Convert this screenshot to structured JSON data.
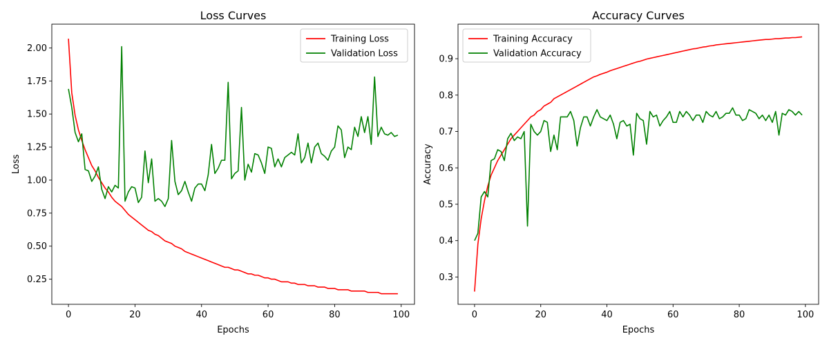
{
  "chart_data": [
    {
      "type": "line",
      "title": "Loss Curves",
      "xlabel": "Epochs",
      "ylabel": "Loss",
      "xlim": [
        -5,
        104
      ],
      "ylim": [
        0.06,
        2.18
      ],
      "xticks": [
        0,
        20,
        40,
        60,
        80,
        100
      ],
      "yticks": [
        0.25,
        0.5,
        0.75,
        1.0,
        1.25,
        1.5,
        1.75,
        2.0
      ],
      "xtick_labels": [
        "0",
        "20",
        "40",
        "60",
        "80",
        "100"
      ],
      "ytick_labels": [
        "0.25",
        "0.50",
        "0.75",
        "1.00",
        "1.25",
        "1.50",
        "1.75",
        "2.00"
      ],
      "grid": false,
      "legend_position": "upper-right",
      "x": [
        0,
        1,
        2,
        3,
        4,
        5,
        6,
        7,
        8,
        9,
        10,
        11,
        12,
        13,
        14,
        15,
        16,
        17,
        18,
        19,
        20,
        21,
        22,
        23,
        24,
        25,
        26,
        27,
        28,
        29,
        30,
        31,
        32,
        33,
        34,
        35,
        36,
        37,
        38,
        39,
        40,
        41,
        42,
        43,
        44,
        45,
        46,
        47,
        48,
        49,
        50,
        51,
        52,
        53,
        54,
        55,
        56,
        57,
        58,
        59,
        60,
        61,
        62,
        63,
        64,
        65,
        66,
        67,
        68,
        69,
        70,
        71,
        72,
        73,
        74,
        75,
        76,
        77,
        78,
        79,
        80,
        81,
        82,
        83,
        84,
        85,
        86,
        87,
        88,
        89,
        90,
        91,
        92,
        93,
        94,
        95,
        96,
        97,
        98,
        99
      ],
      "series": [
        {
          "name": "Training Loss",
          "color": "#ff0000",
          "values": [
            2.07,
            1.66,
            1.49,
            1.38,
            1.3,
            1.23,
            1.17,
            1.11,
            1.07,
            1.02,
            0.98,
            0.94,
            0.91,
            0.87,
            0.84,
            0.82,
            0.8,
            0.77,
            0.74,
            0.72,
            0.7,
            0.68,
            0.66,
            0.64,
            0.62,
            0.61,
            0.59,
            0.58,
            0.56,
            0.54,
            0.53,
            0.52,
            0.5,
            0.49,
            0.48,
            0.46,
            0.45,
            0.44,
            0.43,
            0.42,
            0.41,
            0.4,
            0.39,
            0.38,
            0.37,
            0.36,
            0.35,
            0.34,
            0.34,
            0.33,
            0.32,
            0.32,
            0.31,
            0.3,
            0.29,
            0.29,
            0.28,
            0.28,
            0.27,
            0.26,
            0.26,
            0.25,
            0.25,
            0.24,
            0.23,
            0.23,
            0.23,
            0.22,
            0.22,
            0.21,
            0.21,
            0.21,
            0.2,
            0.2,
            0.2,
            0.19,
            0.19,
            0.19,
            0.18,
            0.18,
            0.18,
            0.17,
            0.17,
            0.17,
            0.17,
            0.16,
            0.16,
            0.16,
            0.16,
            0.16,
            0.15,
            0.15,
            0.15,
            0.15,
            0.14,
            0.14,
            0.14,
            0.14,
            0.14,
            0.14
          ]
        },
        {
          "name": "Validation Loss",
          "color": "#008000",
          "values": [
            1.69,
            1.55,
            1.36,
            1.29,
            1.35,
            1.08,
            1.07,
            0.99,
            1.03,
            1.1,
            0.93,
            0.86,
            0.95,
            0.91,
            0.96,
            0.94,
            2.01,
            0.84,
            0.91,
            0.95,
            0.94,
            0.83,
            0.87,
            1.22,
            0.98,
            1.16,
            0.84,
            0.86,
            0.84,
            0.8,
            0.86,
            1.3,
            0.99,
            0.89,
            0.92,
            0.99,
            0.91,
            0.84,
            0.94,
            0.97,
            0.97,
            0.92,
            1.04,
            1.27,
            1.05,
            1.09,
            1.15,
            1.15,
            1.74,
            1.01,
            1.05,
            1.07,
            1.55,
            1.0,
            1.12,
            1.06,
            1.2,
            1.19,
            1.13,
            1.05,
            1.25,
            1.24,
            1.1,
            1.16,
            1.1,
            1.17,
            1.19,
            1.21,
            1.19,
            1.35,
            1.13,
            1.17,
            1.28,
            1.13,
            1.25,
            1.28,
            1.2,
            1.18,
            1.15,
            1.22,
            1.25,
            1.41,
            1.38,
            1.17,
            1.25,
            1.23,
            1.4,
            1.33,
            1.48,
            1.36,
            1.48,
            1.27,
            1.78,
            1.33,
            1.4,
            1.35,
            1.34,
            1.36,
            1.33,
            1.34
          ]
        }
      ]
    },
    {
      "type": "line",
      "title": "Accuracy Curves",
      "xlabel": "Epochs",
      "ylabel": "Accuracy",
      "xlim": [
        -5,
        104
      ],
      "ylim": [
        0.225,
        0.995
      ],
      "xticks": [
        0,
        20,
        40,
        60,
        80,
        100
      ],
      "yticks": [
        0.3,
        0.4,
        0.5,
        0.6,
        0.7,
        0.8,
        0.9
      ],
      "xtick_labels": [
        "0",
        "20",
        "40",
        "60",
        "80",
        "100"
      ],
      "ytick_labels": [
        "0.3",
        "0.4",
        "0.5",
        "0.6",
        "0.7",
        "0.8",
        "0.9"
      ],
      "grid": false,
      "legend_position": "upper-left",
      "x": [
        0,
        1,
        2,
        3,
        4,
        5,
        6,
        7,
        8,
        9,
        10,
        11,
        12,
        13,
        14,
        15,
        16,
        17,
        18,
        19,
        20,
        21,
        22,
        23,
        24,
        25,
        26,
        27,
        28,
        29,
        30,
        31,
        32,
        33,
        34,
        35,
        36,
        37,
        38,
        39,
        40,
        41,
        42,
        43,
        44,
        45,
        46,
        47,
        48,
        49,
        50,
        51,
        52,
        53,
        54,
        55,
        56,
        57,
        58,
        59,
        60,
        61,
        62,
        63,
        64,
        65,
        66,
        67,
        68,
        69,
        70,
        71,
        72,
        73,
        74,
        75,
        76,
        77,
        78,
        79,
        80,
        81,
        82,
        83,
        84,
        85,
        86,
        87,
        88,
        89,
        90,
        91,
        92,
        93,
        94,
        95,
        96,
        97,
        98,
        99
      ],
      "series": [
        {
          "name": "Training Accuracy",
          "color": "#ff0000",
          "values": [
            0.26,
            0.39,
            0.46,
            0.51,
            0.55,
            0.58,
            0.6,
            0.62,
            0.635,
            0.65,
            0.665,
            0.68,
            0.69,
            0.7,
            0.71,
            0.72,
            0.73,
            0.74,
            0.745,
            0.755,
            0.76,
            0.77,
            0.775,
            0.78,
            0.79,
            0.795,
            0.8,
            0.805,
            0.81,
            0.815,
            0.82,
            0.825,
            0.83,
            0.835,
            0.84,
            0.845,
            0.85,
            0.853,
            0.857,
            0.86,
            0.863,
            0.867,
            0.87,
            0.873,
            0.876,
            0.879,
            0.882,
            0.885,
            0.888,
            0.891,
            0.893,
            0.896,
            0.899,
            0.901,
            0.903,
            0.905,
            0.907,
            0.909,
            0.911,
            0.913,
            0.915,
            0.917,
            0.919,
            0.921,
            0.923,
            0.925,
            0.927,
            0.928,
            0.93,
            0.932,
            0.933,
            0.935,
            0.936,
            0.938,
            0.939,
            0.94,
            0.941,
            0.942,
            0.943,
            0.944,
            0.945,
            0.946,
            0.947,
            0.948,
            0.949,
            0.95,
            0.951,
            0.952,
            0.953,
            0.953,
            0.954,
            0.955,
            0.955,
            0.956,
            0.957,
            0.957,
            0.958,
            0.958,
            0.959,
            0.96
          ]
        },
        {
          "name": "Validation Accuracy",
          "color": "#008000",
          "values": [
            0.4,
            0.42,
            0.52,
            0.535,
            0.52,
            0.62,
            0.625,
            0.65,
            0.645,
            0.62,
            0.68,
            0.695,
            0.675,
            0.685,
            0.68,
            0.7,
            0.44,
            0.72,
            0.7,
            0.69,
            0.7,
            0.73,
            0.725,
            0.645,
            0.69,
            0.65,
            0.74,
            0.74,
            0.74,
            0.755,
            0.73,
            0.66,
            0.71,
            0.74,
            0.74,
            0.715,
            0.74,
            0.76,
            0.74,
            0.735,
            0.73,
            0.745,
            0.72,
            0.68,
            0.725,
            0.73,
            0.715,
            0.72,
            0.635,
            0.75,
            0.735,
            0.73,
            0.665,
            0.755,
            0.74,
            0.745,
            0.715,
            0.73,
            0.74,
            0.755,
            0.725,
            0.725,
            0.755,
            0.74,
            0.755,
            0.745,
            0.73,
            0.745,
            0.745,
            0.725,
            0.755,
            0.745,
            0.74,
            0.755,
            0.735,
            0.74,
            0.75,
            0.75,
            0.765,
            0.745,
            0.745,
            0.73,
            0.735,
            0.76,
            0.755,
            0.75,
            0.735,
            0.745,
            0.73,
            0.745,
            0.725,
            0.755,
            0.69,
            0.75,
            0.745,
            0.76,
            0.755,
            0.745,
            0.755,
            0.745
          ]
        }
      ]
    }
  ]
}
